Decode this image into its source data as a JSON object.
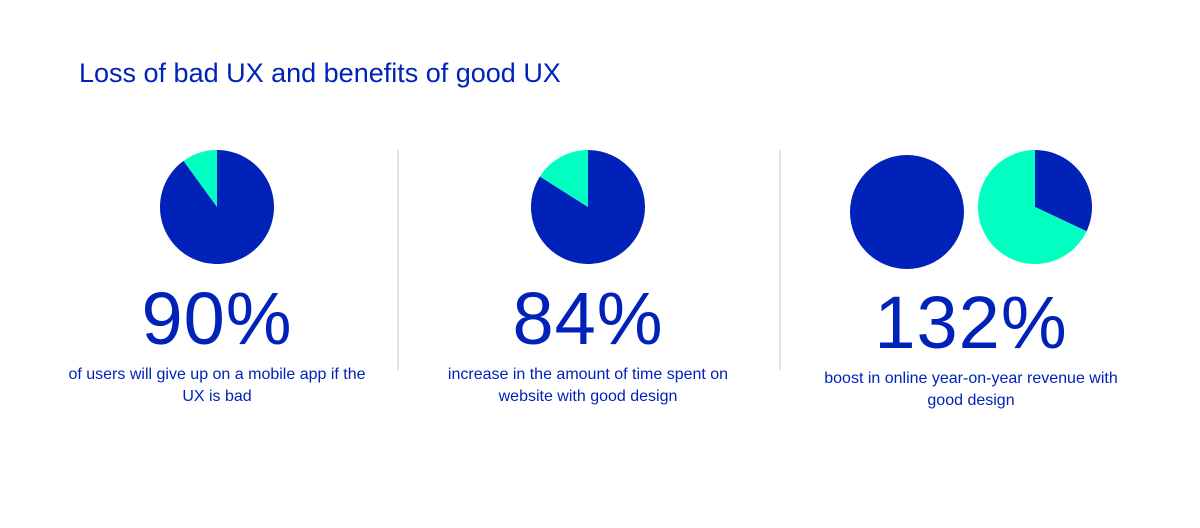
{
  "title": "Loss of bad UX and benefits of good UX",
  "colors": {
    "primary": "#0022b8",
    "accent": "#00ffc0"
  },
  "chart_data": [
    {
      "type": "pie",
      "slices": [
        {
          "value": 90,
          "color": "#0022b8"
        },
        {
          "value": 10,
          "color": "#00ffc0"
        }
      ],
      "stat": "90%",
      "caption": "of users will give up on a mobile app if the UX is bad"
    },
    {
      "type": "pie",
      "slices": [
        {
          "value": 84,
          "color": "#0022b8"
        },
        {
          "value": 16,
          "color": "#00ffc0"
        }
      ],
      "stat": "84%",
      "caption": "increase in the amount of time spent on website with good design"
    },
    {
      "type": "pie",
      "pies": [
        {
          "slices": [
            {
              "value": 100,
              "color": "#0022b8"
            }
          ]
        },
        {
          "slices": [
            {
              "value": 32,
              "color": "#0022b8"
            },
            {
              "value": 68,
              "color": "#00ffc0"
            }
          ]
        }
      ],
      "stat": "132%",
      "caption": "boost in online year-on-year revenue with good design"
    }
  ]
}
